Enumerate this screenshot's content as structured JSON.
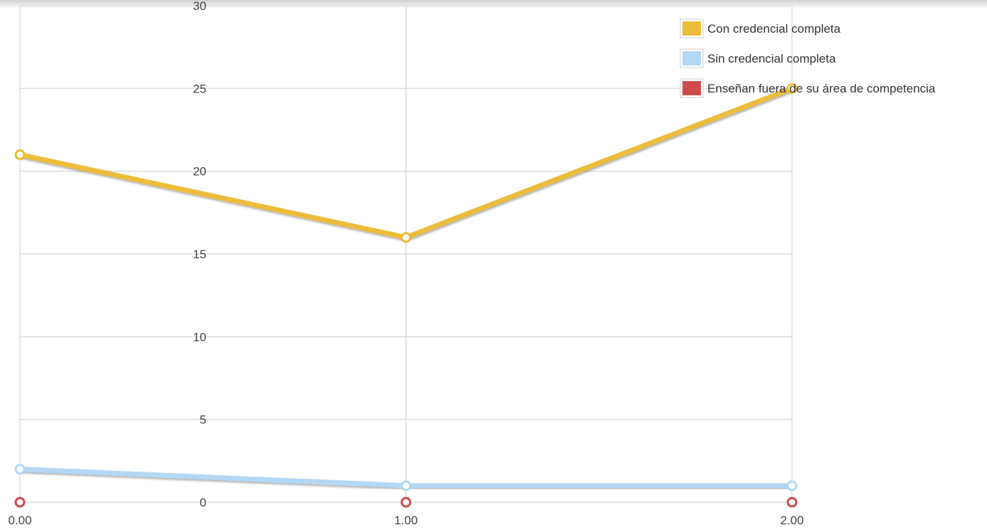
{
  "chart_data": {
    "type": "line",
    "title": "",
    "xlabel": "",
    "ylabel": "",
    "x": [
      0,
      1,
      2
    ],
    "x_tick_labels": [
      "0.00",
      "1.00",
      "2.00"
    ],
    "y_tick_labels": [
      "0",
      "5",
      "10",
      "15",
      "20",
      "25",
      "30"
    ],
    "ylim": [
      0,
      30
    ],
    "xlim": [
      0,
      2
    ],
    "grid": true,
    "legend_position": "top-right",
    "series": [
      {
        "name": "Con credencial completa",
        "values": [
          21,
          16,
          25
        ],
        "color": "#ECBD3B"
      },
      {
        "name": "Sin credencial completa",
        "values": [
          2,
          1,
          1
        ],
        "color": "#B3D8F5"
      },
      {
        "name": "Enseñan fuera de su área de competencia",
        "values": [
          0,
          0,
          0
        ],
        "color": "#CF4B4B"
      }
    ]
  }
}
